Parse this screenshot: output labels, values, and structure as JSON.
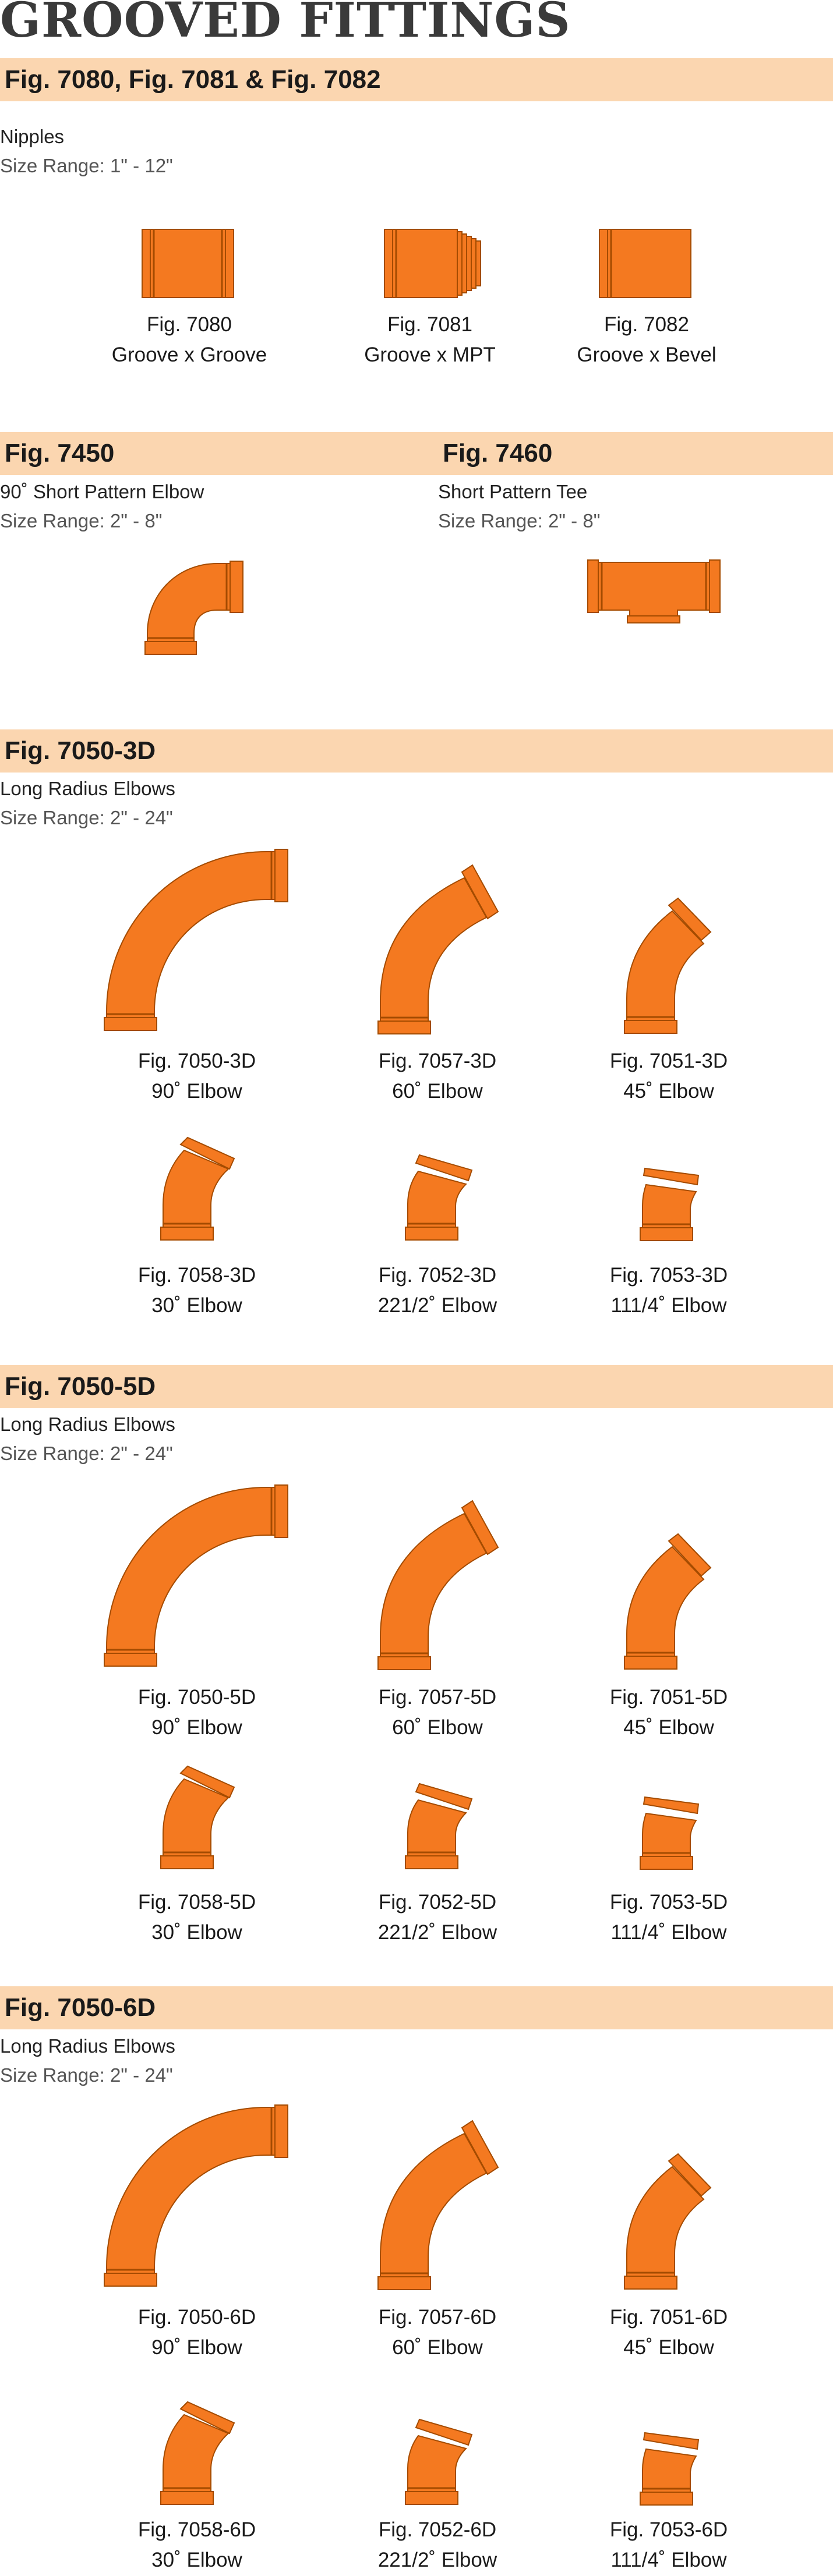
{
  "title": "GROOVED FITTINGS",
  "colors": {
    "orange": "#f47920",
    "band": "#fbd6b0",
    "outline": "#a44b00"
  },
  "nipples": {
    "heading": "Fig. 7080,  Fig. 7081  &  Fig. 7082",
    "type": "Nipples",
    "size": "Size Range: 1\" - 12\"",
    "items": [
      {
        "fig": "Fig. 7080",
        "desc": "Groove x Groove",
        "icon": "nipple-groove-groove"
      },
      {
        "fig": "Fig. 7081",
        "desc": "Groove x MPT",
        "icon": "nipple-groove-mpt"
      },
      {
        "fig": "Fig. 7082",
        "desc": "Groove x Bevel",
        "icon": "nipple-groove-bevel"
      }
    ]
  },
  "short_pattern": {
    "elbow": {
      "heading": "Fig. 7450",
      "type": "90˚ Short Pattern Elbow",
      "size": "Size Range: 2\" - 8\""
    },
    "tee": {
      "heading": "Fig. 7460",
      "type": "Short Pattern Tee",
      "size": "Size Range: 2\" - 8\""
    }
  },
  "sections": [
    {
      "heading": "Fig. 7050-3D",
      "type": "Long Radius Elbows",
      "size": "Size Range: 2\" - 24\"",
      "items": [
        {
          "fig": "Fig. 7050-3D",
          "desc": "90˚ Elbow"
        },
        {
          "fig": "Fig. 7057-3D",
          "desc": "60˚ Elbow"
        },
        {
          "fig": "Fig. 7051-3D",
          "desc": "45˚ Elbow"
        },
        {
          "fig": "Fig. 7058-3D",
          "desc": "30˚ Elbow"
        },
        {
          "fig": "Fig. 7052-3D",
          "desc": "221/2˚ Elbow"
        },
        {
          "fig": "Fig. 7053-3D",
          "desc": "111/4˚ Elbow"
        }
      ]
    },
    {
      "heading": "Fig. 7050-5D",
      "type": "Long Radius Elbows",
      "size": "Size Range: 2\" - 24\"",
      "items": [
        {
          "fig": "Fig. 7050-5D",
          "desc": "90˚ Elbow"
        },
        {
          "fig": "Fig. 7057-5D",
          "desc": "60˚ Elbow"
        },
        {
          "fig": "Fig. 7051-5D",
          "desc": "45˚ Elbow"
        },
        {
          "fig": "Fig. 7058-5D",
          "desc": "30˚ Elbow"
        },
        {
          "fig": "Fig. 7052-5D",
          "desc": "221/2˚ Elbow"
        },
        {
          "fig": "Fig. 7053-5D",
          "desc": "111/4˚ Elbow"
        }
      ]
    },
    {
      "heading": "Fig. 7050-6D",
      "type": "Long Radius Elbows",
      "size": "Size Range: 2\" - 24\"",
      "items": [
        {
          "fig": "Fig. 7050-6D",
          "desc": "90˚ Elbow"
        },
        {
          "fig": "Fig. 7057-6D",
          "desc": "60˚ Elbow"
        },
        {
          "fig": "Fig. 7051-6D",
          "desc": "45˚ Elbow"
        },
        {
          "fig": "Fig. 7058-6D",
          "desc": "30˚ Elbow"
        },
        {
          "fig": "Fig. 7052-6D",
          "desc": "221/2˚ Elbow"
        },
        {
          "fig": "Fig. 7053-6D",
          "desc": "111/4˚ Elbow"
        }
      ]
    }
  ]
}
